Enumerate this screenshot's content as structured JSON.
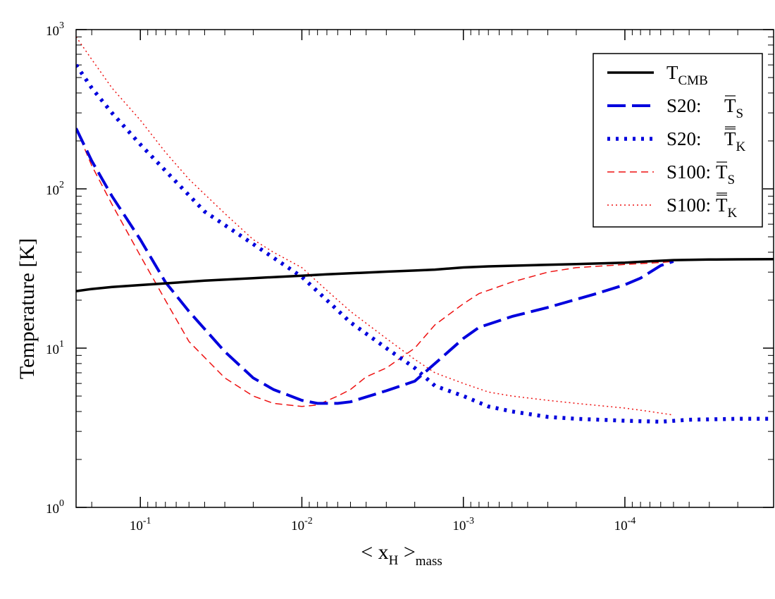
{
  "chart_data": {
    "type": "line",
    "title": "",
    "xlabel": {
      "main": "< x",
      "sub1": "H",
      "mid": " >",
      "sub2": "mass"
    },
    "ylabel": "Temperature [K]",
    "x_scale": "log-reversed",
    "y_scale": "log",
    "xlim": [
      0.25,
      1.2e-05
    ],
    "ylim": [
      1,
      1000
    ],
    "x_ticks": [
      {
        "value": 0.1,
        "base": "10",
        "exp": "-1"
      },
      {
        "value": 0.01,
        "base": "10",
        "exp": "-2"
      },
      {
        "value": 0.001,
        "base": "10",
        "exp": "-3"
      },
      {
        "value": 0.0001,
        "base": "10",
        "exp": "-4"
      }
    ],
    "y_ticks": [
      {
        "value": 1,
        "base": "10",
        "exp": "0"
      },
      {
        "value": 10,
        "base": "10",
        "exp": "1"
      },
      {
        "value": 100,
        "base": "10",
        "exp": "2"
      },
      {
        "value": 1000,
        "base": "10",
        "exp": "3"
      }
    ],
    "legend_position": "top-right",
    "series": [
      {
        "name": "T_CMB",
        "label_main": "T",
        "label_sub": "CMB",
        "label_prefix": "",
        "bar": "none",
        "color": "#000000",
        "style": "solid",
        "width": 3.5,
        "x": [
          0.25,
          0.2,
          0.15,
          0.1,
          0.07,
          0.04,
          0.02,
          0.01,
          0.007,
          0.005,
          0.003,
          0.002,
          0.0015,
          0.001,
          0.0007,
          0.0004,
          0.0002,
          0.0001,
          7e-05,
          5e-05,
          3e-05,
          2e-05,
          1.2e-05
        ],
        "y": [
          22.8,
          23.5,
          24.2,
          24.9,
          25.5,
          26.5,
          27.5,
          28.5,
          29.1,
          29.5,
          30.2,
          30.7,
          31.1,
          32.1,
          32.6,
          33.1,
          33.7,
          34.4,
          35.1,
          35.7,
          36.0,
          36.1,
          36.2
        ]
      },
      {
        "name": "S20: T_S",
        "label_main": "T",
        "label_sub": "S",
        "label_prefix": "S20:",
        "bar": "single",
        "color": "#0000dd",
        "style": "dashed",
        "width": 4,
        "x": [
          0.25,
          0.2,
          0.15,
          0.1,
          0.07,
          0.05,
          0.03,
          0.02,
          0.015,
          0.01,
          0.008,
          0.006,
          0.005,
          0.003,
          0.002,
          0.0015,
          0.001,
          0.0008,
          0.0005,
          0.0003,
          0.00015,
          0.0001,
          8e-05,
          6e-05,
          5e-05
        ],
        "y": [
          240,
          150,
          90,
          48,
          26,
          17,
          9.5,
          6.5,
          5.5,
          4.7,
          4.5,
          4.5,
          4.6,
          5.4,
          6.2,
          8.0,
          11.5,
          13.5,
          15.8,
          18.0,
          22.0,
          25.0,
          27.5,
          33.0,
          35.0
        ]
      },
      {
        "name": "S20: T_K",
        "label_main": "T",
        "label_sub": "K",
        "label_prefix": "S20:",
        "bar": "double",
        "color": "#0000dd",
        "style": "dotted",
        "width": 5.5,
        "x": [
          0.25,
          0.2,
          0.15,
          0.1,
          0.07,
          0.04,
          0.02,
          0.01,
          0.007,
          0.005,
          0.003,
          0.002,
          0.0015,
          0.001,
          0.0007,
          0.0005,
          0.0003,
          0.0002,
          0.0001,
          6e-05,
          4e-05,
          2e-05,
          1.2e-05
        ],
        "y": [
          600,
          430,
          300,
          190,
          130,
          72,
          45,
          28,
          20,
          14.5,
          10.0,
          7.5,
          5.8,
          5.0,
          4.3,
          4.0,
          3.7,
          3.6,
          3.5,
          3.45,
          3.55,
          3.6,
          3.6
        ]
      },
      {
        "name": "S100: T_S",
        "label_main": "T",
        "label_sub": "S",
        "label_prefix": "S100:",
        "bar": "single",
        "color": "#ee1111",
        "style": "dashed-thin",
        "width": 1.5,
        "x": [
          0.25,
          0.2,
          0.15,
          0.1,
          0.07,
          0.05,
          0.03,
          0.02,
          0.015,
          0.01,
          0.008,
          0.006,
          0.005,
          0.004,
          0.003,
          0.002,
          0.0015,
          0.001,
          0.0008,
          0.0005,
          0.0003,
          0.0002,
          0.0001,
          6e-05,
          5e-05
        ],
        "y": [
          240,
          140,
          80,
          38,
          20,
          11,
          6.5,
          5.0,
          4.5,
          4.3,
          4.4,
          5.0,
          5.5,
          6.6,
          7.5,
          10.0,
          14.0,
          19.0,
          22.0,
          26.0,
          30.0,
          32.0,
          33.5,
          34.5,
          35.0
        ]
      },
      {
        "name": "S100: T_K",
        "label_main": "T",
        "label_sub": "K",
        "label_prefix": "S100:",
        "bar": "double",
        "color": "#ee1111",
        "style": "dotted-thin",
        "width": 1.5,
        "x": [
          0.25,
          0.2,
          0.15,
          0.1,
          0.07,
          0.05,
          0.03,
          0.02,
          0.015,
          0.01,
          0.007,
          0.005,
          0.003,
          0.002,
          0.0015,
          0.001,
          0.0007,
          0.0005,
          0.0003,
          0.0002,
          0.0001,
          7e-05,
          5e-05
        ],
        "y": [
          900,
          650,
          430,
          270,
          170,
          115,
          70,
          48,
          40,
          32,
          23,
          17,
          11.5,
          8.5,
          7.0,
          6.0,
          5.3,
          5.0,
          4.7,
          4.5,
          4.2,
          4.0,
          3.8
        ]
      }
    ]
  }
}
